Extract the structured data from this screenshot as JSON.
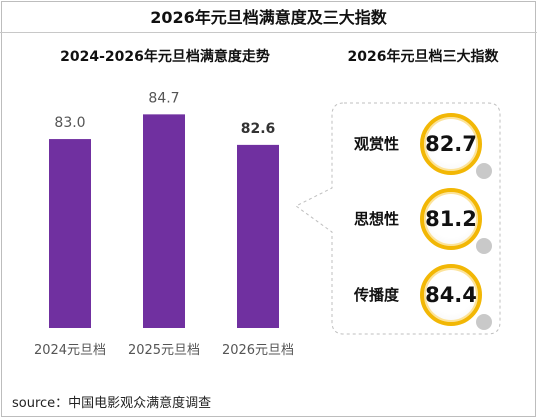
{
  "title": "2026年元旦档满意度及三大指数",
  "left_panel": {
    "subtitle": "2024-2026年元旦档满意度走势"
  },
  "right_panel": {
    "subtitle": "2026年元旦档三大指数",
    "indices": [
      {
        "name": "观赏性",
        "value": "82.7"
      },
      {
        "name": "思想性",
        "value": "81.2"
      },
      {
        "name": "传播度",
        "value": "84.4"
      }
    ]
  },
  "chart_data": {
    "type": "bar",
    "title": "2024-2026年元旦档满意度走势",
    "categories": [
      "2024元旦档",
      "2025元旦档",
      "2026元旦档"
    ],
    "values": [
      83.0,
      84.7,
      82.6
    ],
    "value_labels": [
      "83.0",
      "84.7",
      "82.6"
    ],
    "xlabel": "",
    "ylabel": "",
    "ylim": [
      70,
      85
    ],
    "grid": false,
    "bar_color": "#7030a0"
  },
  "colors": {
    "bar": "#7030a0",
    "badge_ring": "#f2b705",
    "callout_border": "#bfbfbf"
  },
  "source": "source：中国电影观众满意度调查"
}
